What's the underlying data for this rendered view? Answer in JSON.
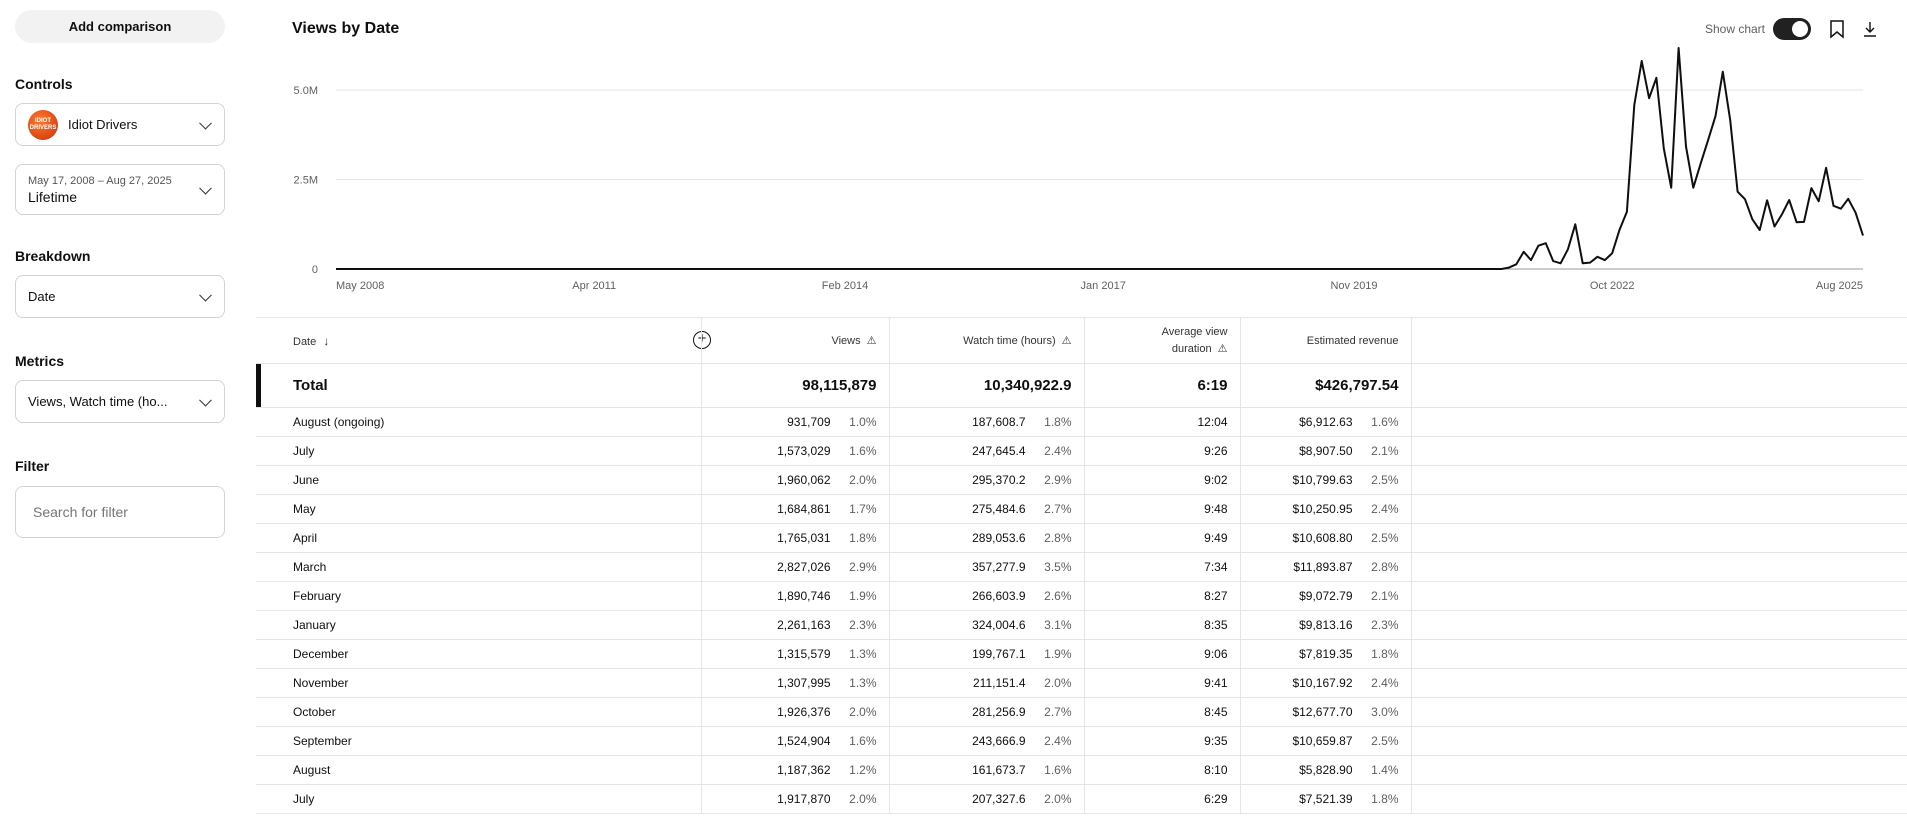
{
  "sidebar": {
    "add_comparison": "Add comparison",
    "controls_label": "Controls",
    "channel": {
      "name": "Idiot Drivers",
      "avatar_text": "IDIOT DRIVERS"
    },
    "date_range": {
      "range": "May 17, 2008 – Aug 27, 2025",
      "label": "Lifetime"
    },
    "breakdown_label": "Breakdown",
    "breakdown_value": "Date",
    "metrics_label": "Metrics",
    "metrics_value": "Views, Watch time (ho...",
    "filter_label": "Filter",
    "filter_placeholder": "Search for filter"
  },
  "header": {
    "title": "Views by Date",
    "show_chart": "Show chart",
    "show_chart_on": true
  },
  "chart_data": {
    "type": "line",
    "title": "Views by Date",
    "ylabel": "Views",
    "ylim": [
      0,
      6000000
    ],
    "yticks": [
      {
        "v": 0,
        "label": "0"
      },
      {
        "v": 2500000,
        "label": "2.5M"
      },
      {
        "v": 5000000,
        "label": "5.0M"
      }
    ],
    "xticks": [
      {
        "d": "2008-05",
        "label": "May 2008"
      },
      {
        "d": "2011-04",
        "label": "Apr 2011"
      },
      {
        "d": "2014-02",
        "label": "Feb 2014"
      },
      {
        "d": "2017-01",
        "label": "Jan 2017"
      },
      {
        "d": "2019-11",
        "label": "Nov 2019"
      },
      {
        "d": "2022-10",
        "label": "Oct 2022"
      },
      {
        "d": "2025-08",
        "label": "Aug 2025"
      }
    ],
    "grid": true,
    "series": [
      {
        "name": "Views",
        "points": [
          [
            "2008-05",
            0
          ],
          [
            "2021-07",
            0
          ],
          [
            "2021-08",
            40000
          ],
          [
            "2021-09",
            130000
          ],
          [
            "2021-10",
            480000
          ],
          [
            "2021-11",
            250000
          ],
          [
            "2021-12",
            650000
          ],
          [
            "2022-01",
            720000
          ],
          [
            "2022-02",
            220000
          ],
          [
            "2022-03",
            160000
          ],
          [
            "2022-04",
            550000
          ],
          [
            "2022-05",
            1250000
          ],
          [
            "2022-06",
            160000
          ],
          [
            "2022-07",
            180000
          ],
          [
            "2022-08",
            340000
          ],
          [
            "2022-09",
            250000
          ],
          [
            "2022-10",
            440000
          ],
          [
            "2022-11",
            1100000
          ],
          [
            "2022-12",
            1600000
          ],
          [
            "2023-01",
            4580000
          ],
          [
            "2023-02",
            5810000
          ],
          [
            "2023-03",
            4770000
          ],
          [
            "2023-04",
            5340000
          ],
          [
            "2023-05",
            3370000
          ],
          [
            "2023-06",
            2270000
          ],
          [
            "2023-07",
            6200000
          ],
          [
            "2023-08",
            3420000
          ],
          [
            "2023-09",
            2270000
          ],
          [
            "2023-10",
            2950000
          ],
          [
            "2023-11",
            3600000
          ],
          [
            "2023-12",
            4270000
          ],
          [
            "2024-01",
            5510000
          ],
          [
            "2024-02",
            4160000
          ],
          [
            "2024-03",
            2160000
          ],
          [
            "2024-04",
            1950000
          ],
          [
            "2024-05",
            1390000
          ],
          [
            "2024-06",
            1090000
          ],
          [
            "2024-07",
            1917870
          ],
          [
            "2024-08",
            1187362
          ],
          [
            "2024-09",
            1524904
          ],
          [
            "2024-10",
            1926376
          ],
          [
            "2024-11",
            1307995
          ],
          [
            "2024-12",
            1315579
          ],
          [
            "2025-01",
            2261163
          ],
          [
            "2025-02",
            1890746
          ],
          [
            "2025-03",
            2827026
          ],
          [
            "2025-04",
            1765031
          ],
          [
            "2025-05",
            1684861
          ],
          [
            "2025-06",
            1960062
          ],
          [
            "2025-07",
            1573029
          ],
          [
            "2025-08",
            931709
          ]
        ]
      }
    ]
  },
  "table": {
    "headers": {
      "date": "Date",
      "views": "Views",
      "watch": "Watch time (hours)",
      "avg1": "Average view",
      "avg2": "duration",
      "revenue": "Estimated revenue"
    },
    "total": {
      "label": "Total",
      "views": "98,115,879",
      "watch": "10,340,922.9",
      "avg": "6:19",
      "revenue": "$426,797.54"
    },
    "rows": [
      [
        "August (ongoing)",
        "931,709",
        "1.0%",
        "187,608.7",
        "1.8%",
        "12:04",
        "$6,912.63",
        "1.6%"
      ],
      [
        "July",
        "1,573,029",
        "1.6%",
        "247,645.4",
        "2.4%",
        "9:26",
        "$8,907.50",
        "2.1%"
      ],
      [
        "June",
        "1,960,062",
        "2.0%",
        "295,370.2",
        "2.9%",
        "9:02",
        "$10,799.63",
        "2.5%"
      ],
      [
        "May",
        "1,684,861",
        "1.7%",
        "275,484.6",
        "2.7%",
        "9:48",
        "$10,250.95",
        "2.4%"
      ],
      [
        "April",
        "1,765,031",
        "1.8%",
        "289,053.6",
        "2.8%",
        "9:49",
        "$10,608.80",
        "2.5%"
      ],
      [
        "March",
        "2,827,026",
        "2.9%",
        "357,277.9",
        "3.5%",
        "7:34",
        "$11,893.87",
        "2.8%"
      ],
      [
        "February",
        "1,890,746",
        "1.9%",
        "266,603.9",
        "2.6%",
        "8:27",
        "$9,072.79",
        "2.1%"
      ],
      [
        "January",
        "2,261,163",
        "2.3%",
        "324,004.6",
        "3.1%",
        "8:35",
        "$9,813.16",
        "2.3%"
      ],
      [
        "December",
        "1,315,579",
        "1.3%",
        "199,767.1",
        "1.9%",
        "9:06",
        "$7,819.35",
        "1.8%"
      ],
      [
        "November",
        "1,307,995",
        "1.3%",
        "211,151.4",
        "2.0%",
        "9:41",
        "$10,167.92",
        "2.4%"
      ],
      [
        "October",
        "1,926,376",
        "2.0%",
        "281,256.9",
        "2.7%",
        "8:45",
        "$12,677.70",
        "3.0%"
      ],
      [
        "September",
        "1,524,904",
        "1.6%",
        "243,666.9",
        "2.4%",
        "9:35",
        "$10,659.87",
        "2.5%"
      ],
      [
        "August",
        "1,187,362",
        "1.2%",
        "161,673.7",
        "1.6%",
        "8:10",
        "$5,828.90",
        "1.4%"
      ],
      [
        "July",
        "1,917,870",
        "2.0%",
        "207,327.6",
        "2.0%",
        "6:29",
        "$7,521.39",
        "1.8%"
      ]
    ]
  }
}
